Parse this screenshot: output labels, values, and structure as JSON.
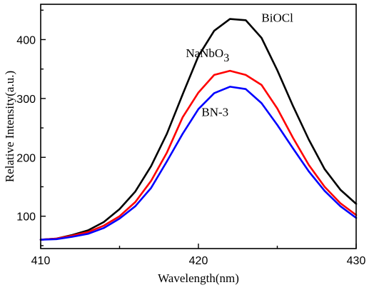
{
  "chart_data": {
    "type": "line",
    "xlabel": "Wavelength(nm)",
    "ylabel": "Relative Intensity(a.u.)",
    "xlim": [
      410,
      430
    ],
    "ylim": [
      45,
      460
    ],
    "x_ticks": [
      410,
      420,
      430
    ],
    "y_ticks": [
      100,
      200,
      300,
      400
    ],
    "grid": false,
    "legend": "inline labels",
    "x": [
      410,
      411,
      412,
      413,
      414,
      415,
      416,
      417,
      418,
      419,
      420,
      421,
      422,
      423,
      424,
      425,
      426,
      427,
      428,
      429,
      430
    ],
    "series": [
      {
        "name": "BiOCl",
        "label_text": "BiOCl",
        "color": "#000000",
        "values": [
          60,
          62,
          68,
          76,
          90,
          112,
          142,
          185,
          240,
          307,
          372,
          415,
          435,
          433,
          403,
          348,
          287,
          230,
          180,
          145,
          121
        ]
      },
      {
        "name": "NaNbO3",
        "label_text": "NaNbO",
        "label_sub": "3",
        "color": "#ff0000",
        "values": [
          60,
          62,
          67,
          73,
          84,
          100,
          124,
          160,
          208,
          268,
          310,
          340,
          347,
          340,
          323,
          283,
          233,
          187,
          150,
          122,
          102
        ]
      },
      {
        "name": "BN-3",
        "label_text": "BN-3",
        "color": "#0000ff",
        "values": [
          60,
          61,
          65,
          70,
          80,
          96,
          117,
          148,
          193,
          240,
          282,
          309,
          320,
          316,
          292,
          255,
          215,
          176,
          143,
          117,
          97
        ]
      }
    ]
  }
}
